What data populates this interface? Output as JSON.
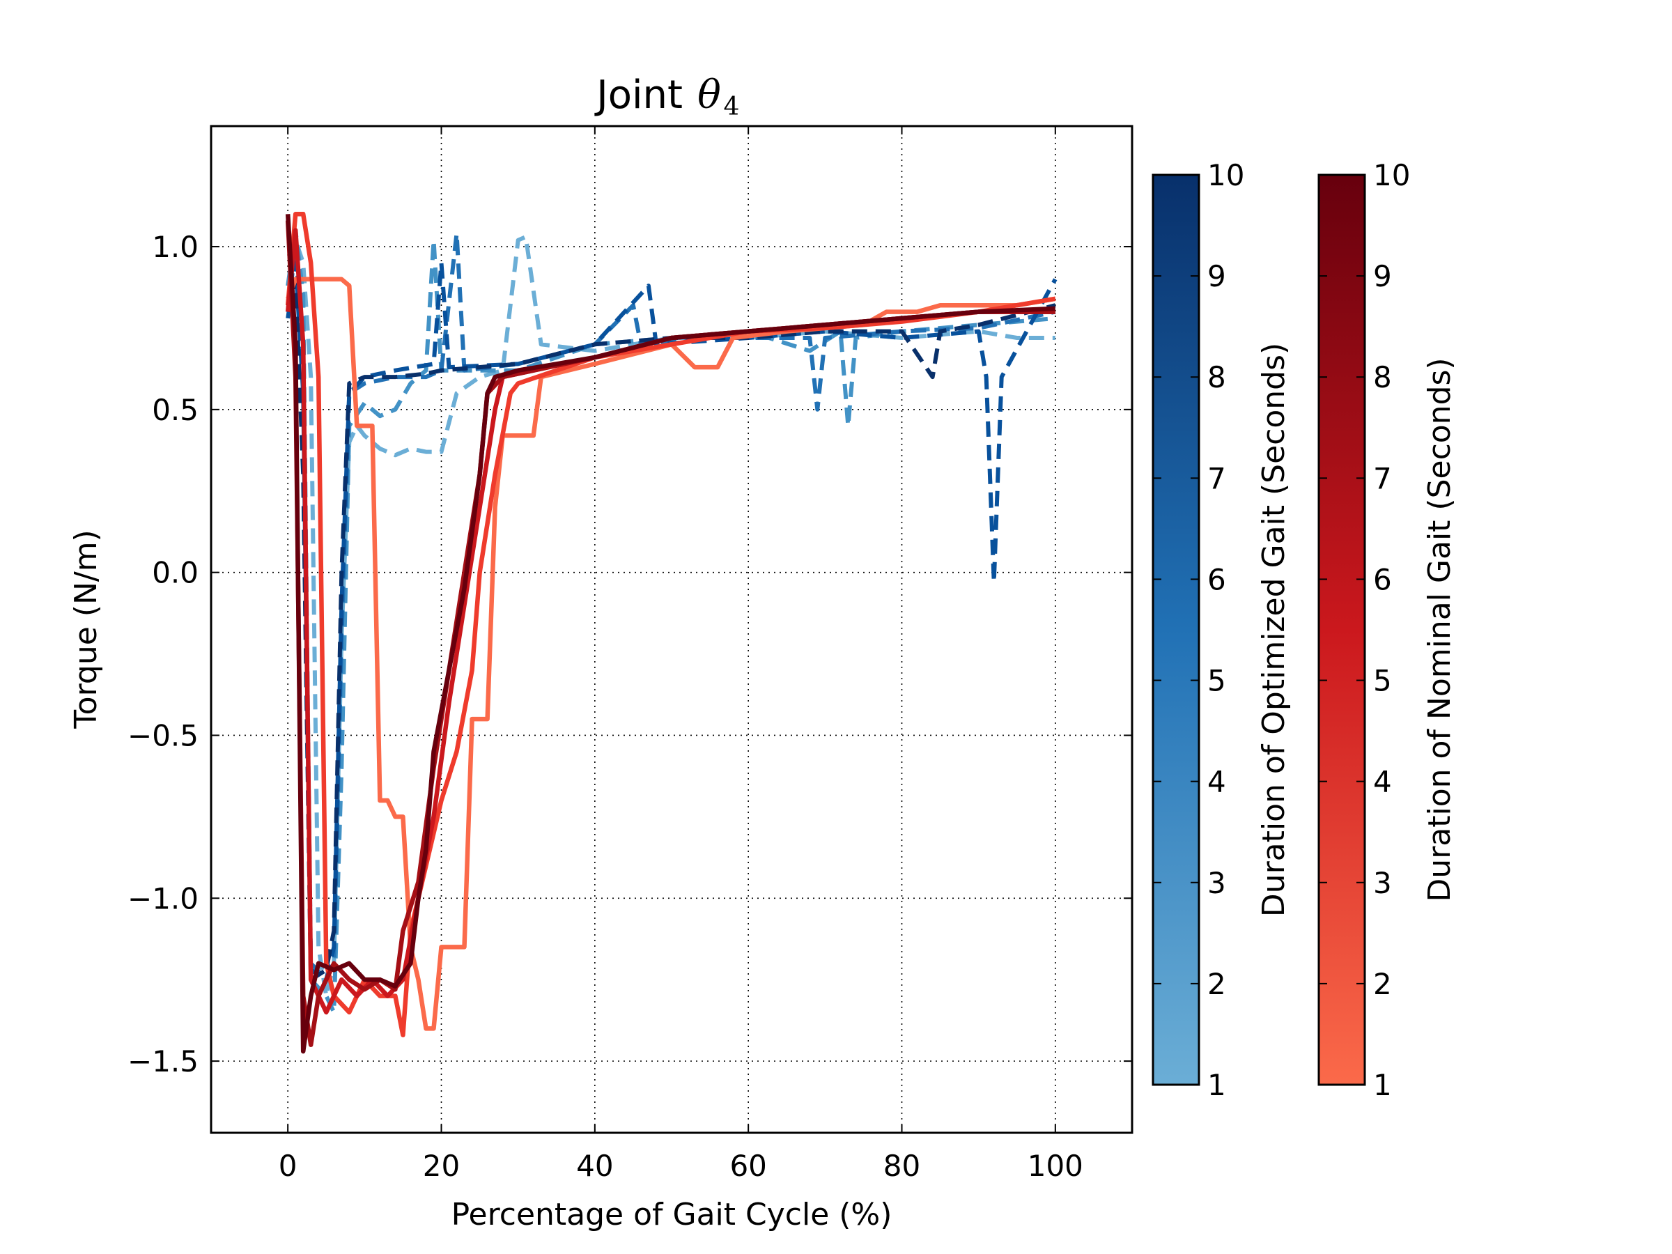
{
  "chart_data": {
    "type": "line",
    "title": "Joint",
    "title_symbol": "θ",
    "title_subscript": "4",
    "xlabel": "Percentage of Gait Cycle (%)",
    "ylabel": "Torque (N/m)",
    "xlim": [
      -10,
      110
    ],
    "ylim": [
      -1.72,
      1.37
    ],
    "xticks": [
      0,
      20,
      40,
      60,
      80,
      100
    ],
    "yticks": [
      -1.5,
      -1.0,
      -0.5,
      0.0,
      0.5,
      1.0
    ],
    "ytick_labels": [
      "−1.5",
      "−1.0",
      "−0.5",
      "0.0",
      "0.5",
      "1.0"
    ],
    "grid": true,
    "colorbars": [
      {
        "label": "Duration of Optimized Gait (Seconds)",
        "ticks": [
          "1",
          "2",
          "3",
          "4",
          "5",
          "6",
          "7",
          "8",
          "9",
          "10"
        ],
        "color_low": "#6baed6",
        "color_high": "#08306b"
      },
      {
        "label": "Duration of Nominal Gait (Seconds)",
        "ticks": [
          "1",
          "2",
          "3",
          "4",
          "5",
          "6",
          "7",
          "8",
          "9",
          "10"
        ],
        "color_low": "#fb6a4a",
        "color_high": "#67000d"
      }
    ],
    "series": [
      {
        "group": "optimized",
        "duration": 1,
        "color": "#6baed6",
        "style": "dashed",
        "points": [
          [
            0,
            0.82
          ],
          [
            1,
            1.02
          ],
          [
            2,
            0.95
          ],
          [
            3,
            0.6
          ],
          [
            4,
            -1.15
          ],
          [
            5,
            -1.3
          ],
          [
            6,
            -1.2
          ],
          [
            7,
            -0.2
          ],
          [
            8,
            0.4
          ],
          [
            9,
            0.45
          ],
          [
            10,
            0.42
          ],
          [
            12,
            0.38
          ],
          [
            14,
            0.36
          ],
          [
            16,
            0.38
          ],
          [
            18,
            0.37
          ],
          [
            20,
            0.37
          ],
          [
            22,
            0.55
          ],
          [
            25,
            0.6
          ],
          [
            28,
            0.62
          ],
          [
            30,
            1.02
          ],
          [
            31,
            1.03
          ],
          [
            33,
            0.7
          ],
          [
            40,
            0.68
          ],
          [
            50,
            0.72
          ],
          [
            60,
            0.72
          ],
          [
            70,
            0.74
          ],
          [
            80,
            0.72
          ],
          [
            90,
            0.74
          ],
          [
            95,
            0.72
          ],
          [
            100,
            0.72
          ]
        ]
      },
      {
        "group": "optimized",
        "duration": 3,
        "color": "#4292c6",
        "style": "dashed",
        "points": [
          [
            0,
            0.88
          ],
          [
            1,
            1.05
          ],
          [
            2,
            0.85
          ],
          [
            3,
            -1.25
          ],
          [
            5,
            -1.3
          ],
          [
            6,
            -1.35
          ],
          [
            7,
            -0.6
          ],
          [
            8,
            0.45
          ],
          [
            10,
            0.52
          ],
          [
            12,
            0.48
          ],
          [
            14,
            0.5
          ],
          [
            16,
            0.58
          ],
          [
            18,
            0.62
          ],
          [
            19,
            1.02
          ],
          [
            20,
            0.62
          ],
          [
            25,
            0.62
          ],
          [
            30,
            0.62
          ],
          [
            35,
            0.66
          ],
          [
            40,
            0.7
          ],
          [
            50,
            0.72
          ],
          [
            60,
            0.74
          ],
          [
            68,
            0.68
          ],
          [
            72,
            0.74
          ],
          [
            73,
            0.45
          ],
          [
            74,
            0.72
          ],
          [
            80,
            0.74
          ],
          [
            90,
            0.76
          ],
          [
            100,
            0.78
          ]
        ]
      },
      {
        "group": "optimized",
        "duration": 6,
        "color": "#2171b5",
        "style": "dashed",
        "points": [
          [
            0,
            0.8
          ],
          [
            1,
            1.0
          ],
          [
            2,
            0.65
          ],
          [
            3,
            -1.2
          ],
          [
            5,
            -1.25
          ],
          [
            6,
            -1.2
          ],
          [
            7,
            -0.2
          ],
          [
            8,
            0.55
          ],
          [
            10,
            0.58
          ],
          [
            14,
            0.6
          ],
          [
            18,
            0.6
          ],
          [
            20,
            0.62
          ],
          [
            22,
            1.04
          ],
          [
            23,
            0.62
          ],
          [
            30,
            0.64
          ],
          [
            40,
            0.7
          ],
          [
            45,
            0.82
          ],
          [
            46,
            0.7
          ],
          [
            55,
            0.72
          ],
          [
            60,
            0.72
          ],
          [
            68,
            0.72
          ],
          [
            69,
            0.5
          ],
          [
            70,
            0.72
          ],
          [
            80,
            0.74
          ],
          [
            90,
            0.75
          ],
          [
            100,
            0.8
          ]
        ]
      },
      {
        "group": "optimized",
        "duration": 8,
        "color": "#08519c",
        "style": "dashed",
        "points": [
          [
            0,
            0.78
          ],
          [
            1,
            0.95
          ],
          [
            2,
            0.55
          ],
          [
            3,
            -1.22
          ],
          [
            5,
            -1.25
          ],
          [
            6,
            -1.15
          ],
          [
            7,
            -0.1
          ],
          [
            8,
            0.55
          ],
          [
            10,
            0.6
          ],
          [
            14,
            0.62
          ],
          [
            19,
            0.64
          ],
          [
            20,
            0.95
          ],
          [
            21,
            0.63
          ],
          [
            30,
            0.64
          ],
          [
            40,
            0.7
          ],
          [
            47,
            0.88
          ],
          [
            48,
            0.7
          ],
          [
            60,
            0.72
          ],
          [
            70,
            0.74
          ],
          [
            80,
            0.72
          ],
          [
            90,
            0.74
          ],
          [
            91,
            0.6
          ],
          [
            92,
            -0.03
          ],
          [
            93,
            0.6
          ],
          [
            100,
            0.9
          ]
        ]
      },
      {
        "group": "optimized",
        "duration": 10,
        "color": "#08306b",
        "style": "dashed",
        "points": [
          [
            0,
            0.8
          ],
          [
            1,
            0.9
          ],
          [
            2,
            0.3
          ],
          [
            3,
            -1.25
          ],
          [
            5,
            -1.22
          ],
          [
            6,
            -1.1
          ],
          [
            7,
            0.0
          ],
          [
            8,
            0.58
          ],
          [
            10,
            0.6
          ],
          [
            14,
            0.6
          ],
          [
            18,
            0.61
          ],
          [
            20,
            0.62
          ],
          [
            30,
            0.64
          ],
          [
            40,
            0.7
          ],
          [
            50,
            0.72
          ],
          [
            60,
            0.72
          ],
          [
            70,
            0.74
          ],
          [
            80,
            0.74
          ],
          [
            84,
            0.6
          ],
          [
            85,
            0.74
          ],
          [
            90,
            0.76
          ],
          [
            100,
            0.82
          ]
        ]
      },
      {
        "group": "nominal",
        "duration": 1,
        "color": "#fb6a4a",
        "style": "solid",
        "points": [
          [
            0,
            0.84
          ],
          [
            1,
            0.9
          ],
          [
            3,
            0.9
          ],
          [
            5,
            0.9
          ],
          [
            7,
            0.9
          ],
          [
            8,
            0.88
          ],
          [
            9,
            0.45
          ],
          [
            11,
            0.45
          ],
          [
            12,
            -0.7
          ],
          [
            13,
            -0.7
          ],
          [
            14,
            -0.75
          ],
          [
            15,
            -0.75
          ],
          [
            16,
            -1.15
          ],
          [
            17,
            -1.25
          ],
          [
            18,
            -1.4
          ],
          [
            19,
            -1.4
          ],
          [
            20,
            -1.15
          ],
          [
            23,
            -1.15
          ],
          [
            24,
            -0.45
          ],
          [
            26,
            -0.45
          ],
          [
            27,
            0.2
          ],
          [
            28,
            0.42
          ],
          [
            32,
            0.42
          ],
          [
            33,
            0.6
          ],
          [
            40,
            0.64
          ],
          [
            50,
            0.7
          ],
          [
            53,
            0.63
          ],
          [
            56,
            0.63
          ],
          [
            58,
            0.72
          ],
          [
            65,
            0.74
          ],
          [
            75,
            0.76
          ],
          [
            78,
            0.8
          ],
          [
            82,
            0.8
          ],
          [
            85,
            0.82
          ],
          [
            90,
            0.82
          ],
          [
            95,
            0.82
          ],
          [
            100,
            0.84
          ]
        ]
      },
      {
        "group": "nominal",
        "duration": 3,
        "color": "#ef3b2c",
        "style": "solid",
        "points": [
          [
            0,
            0.82
          ],
          [
            1,
            1.1
          ],
          [
            2,
            1.1
          ],
          [
            3,
            0.95
          ],
          [
            4,
            0.6
          ],
          [
            5,
            -1.2
          ],
          [
            6,
            -1.3
          ],
          [
            8,
            -1.35
          ],
          [
            10,
            -1.25
          ],
          [
            12,
            -1.3
          ],
          [
            14,
            -1.3
          ],
          [
            15,
            -1.42
          ],
          [
            16,
            -1.1
          ],
          [
            18,
            -0.9
          ],
          [
            20,
            -0.7
          ],
          [
            22,
            -0.55
          ],
          [
            24,
            -0.3
          ],
          [
            25,
            0.0
          ],
          [
            27,
            0.3
          ],
          [
            29,
            0.55
          ],
          [
            30,
            0.58
          ],
          [
            35,
            0.62
          ],
          [
            40,
            0.66
          ],
          [
            50,
            0.7
          ],
          [
            60,
            0.74
          ],
          [
            70,
            0.75
          ],
          [
            80,
            0.77
          ],
          [
            90,
            0.8
          ],
          [
            100,
            0.84
          ]
        ]
      },
      {
        "group": "nominal",
        "duration": 5,
        "color": "#cb181d",
        "style": "solid",
        "points": [
          [
            0,
            0.8
          ],
          [
            1,
            1.05
          ],
          [
            2,
            0.7
          ],
          [
            3,
            -1.25
          ],
          [
            5,
            -1.35
          ],
          [
            7,
            -1.25
          ],
          [
            9,
            -1.3
          ],
          [
            11,
            -1.25
          ],
          [
            13,
            -1.3
          ],
          [
            15,
            -1.25
          ],
          [
            17,
            -1.0
          ],
          [
            19,
            -0.75
          ],
          [
            21,
            -0.4
          ],
          [
            23,
            -0.1
          ],
          [
            25,
            0.2
          ],
          [
            27,
            0.5
          ],
          [
            28,
            0.6
          ],
          [
            32,
            0.62
          ],
          [
            40,
            0.66
          ],
          [
            50,
            0.72
          ],
          [
            60,
            0.74
          ],
          [
            70,
            0.76
          ],
          [
            80,
            0.78
          ],
          [
            90,
            0.8
          ],
          [
            100,
            0.8
          ]
        ]
      },
      {
        "group": "nominal",
        "duration": 7,
        "color": "#a50f15",
        "style": "solid",
        "points": [
          [
            0,
            1.08
          ],
          [
            1,
            0.6
          ],
          [
            2,
            -1.3
          ],
          [
            3,
            -1.45
          ],
          [
            4,
            -1.3
          ],
          [
            6,
            -1.2
          ],
          [
            8,
            -1.25
          ],
          [
            10,
            -1.28
          ],
          [
            12,
            -1.25
          ],
          [
            14,
            -1.28
          ],
          [
            15,
            -1.1
          ],
          [
            17,
            -0.95
          ],
          [
            19,
            -0.6
          ],
          [
            21,
            -0.3
          ],
          [
            23,
            0.0
          ],
          [
            25,
            0.3
          ],
          [
            26,
            0.55
          ],
          [
            28,
            0.6
          ],
          [
            32,
            0.62
          ],
          [
            40,
            0.66
          ],
          [
            50,
            0.72
          ],
          [
            60,
            0.74
          ],
          [
            70,
            0.76
          ],
          [
            80,
            0.78
          ],
          [
            90,
            0.8
          ],
          [
            100,
            0.8
          ]
        ]
      },
      {
        "group": "nominal",
        "duration": 10,
        "color": "#67000d",
        "style": "solid",
        "points": [
          [
            0,
            1.1
          ],
          [
            1,
            0.7
          ],
          [
            2,
            -1.47
          ],
          [
            3,
            -1.3
          ],
          [
            4,
            -1.2
          ],
          [
            6,
            -1.22
          ],
          [
            8,
            -1.2
          ],
          [
            10,
            -1.25
          ],
          [
            12,
            -1.25
          ],
          [
            14,
            -1.27
          ],
          [
            16,
            -1.2
          ],
          [
            17,
            -1.0
          ],
          [
            18,
            -0.85
          ],
          [
            19,
            -0.55
          ],
          [
            21,
            -0.3
          ],
          [
            23,
            -0.05
          ],
          [
            25,
            0.3
          ],
          [
            26,
            0.55
          ],
          [
            27,
            0.6
          ],
          [
            30,
            0.62
          ],
          [
            35,
            0.64
          ],
          [
            40,
            0.66
          ],
          [
            50,
            0.72
          ],
          [
            60,
            0.74
          ],
          [
            70,
            0.76
          ],
          [
            80,
            0.78
          ],
          [
            90,
            0.8
          ],
          [
            100,
            0.81
          ]
        ]
      }
    ]
  }
}
